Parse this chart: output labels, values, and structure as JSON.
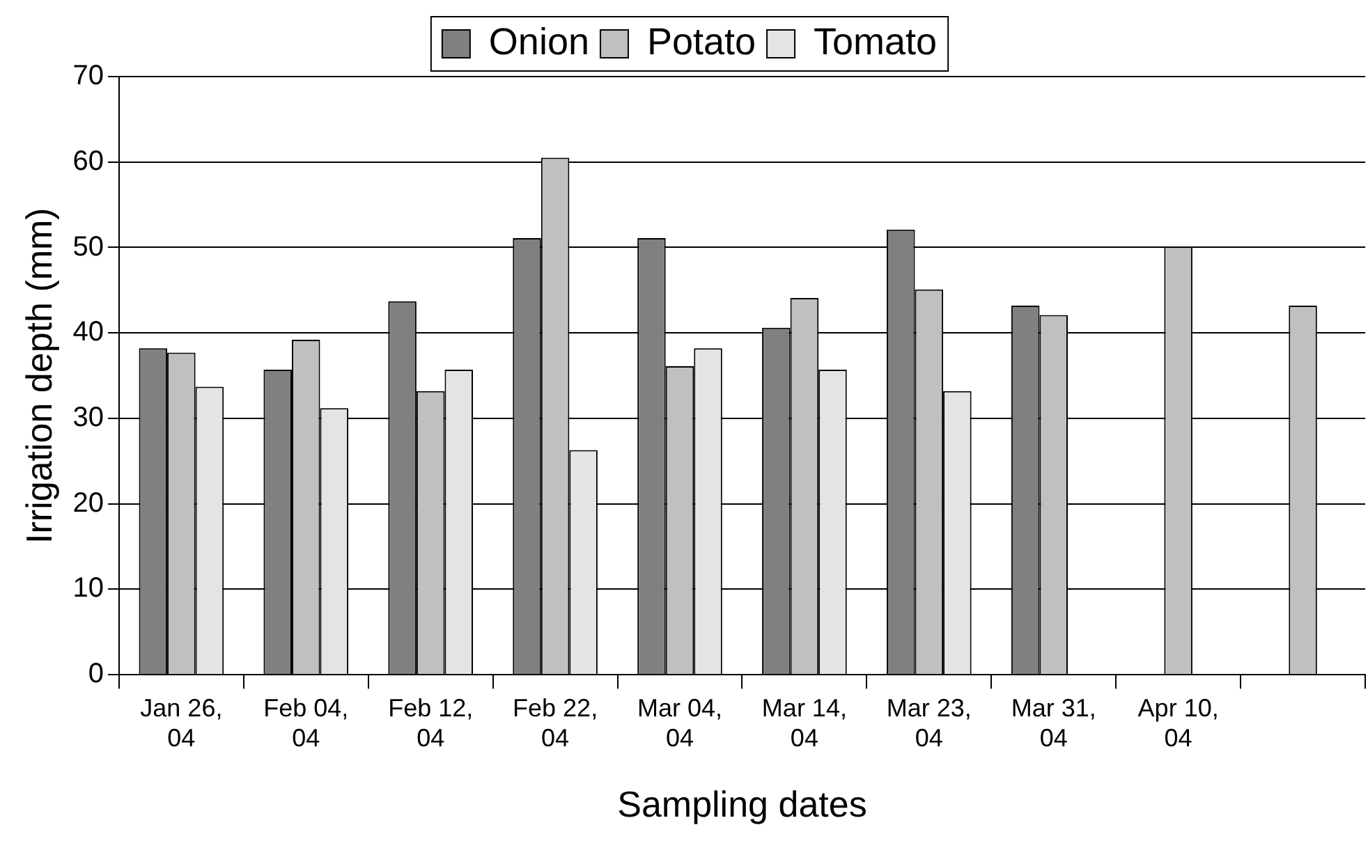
{
  "chart_data": {
    "type": "bar",
    "xlabel": "Sampling dates",
    "ylabel": "Irrigation depth (mm)",
    "categories": [
      "Jan 26,\n04",
      "Feb 04,\n04",
      "Feb 12,\n04",
      "Feb 22,\n04",
      "Mar 04,\n04",
      "Mar 14,\n04",
      "Mar 23,\n04",
      "Mar 31,\n04",
      "Apr 10,\n04",
      null
    ],
    "series": [
      {
        "name": "Onion",
        "color": "#808080",
        "values": [
          38.2,
          35.7,
          43.7,
          51.1,
          51.1,
          40.6,
          52.1,
          43.2,
          null,
          null
        ]
      },
      {
        "name": "Potato",
        "color": "#c0c0c0",
        "values": [
          37.7,
          39.2,
          33.2,
          60.5,
          36.1,
          44.1,
          45.1,
          42.1,
          50.1,
          43.2
        ]
      },
      {
        "name": "Tomato",
        "color": "#e4e4e4",
        "values": [
          33.7,
          31.2,
          35.7,
          26.3,
          38.2,
          35.7,
          33.2,
          null,
          null,
          null
        ]
      }
    ],
    "ylim": [
      0,
      70
    ],
    "yticks": [
      0,
      10,
      20,
      30,
      40,
      50,
      60,
      70
    ],
    "grid": "y",
    "legend": "top"
  }
}
